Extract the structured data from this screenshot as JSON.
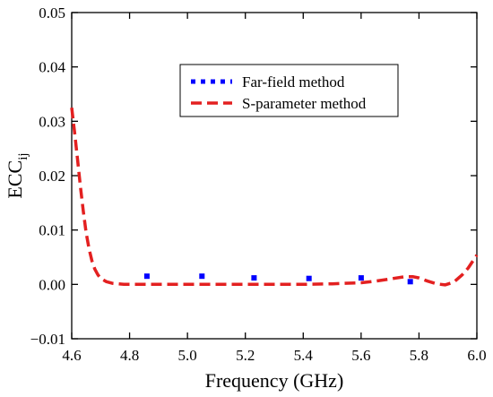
{
  "chart_data": {
    "type": "line",
    "xlabel": "Frequency (GHz)",
    "ylabel_main": "ECC",
    "ylabel_sub": "ij",
    "xlim": [
      4.6,
      6.0
    ],
    "ylim": [
      -0.01,
      0.05
    ],
    "xticks": [
      "4.6",
      "4.8",
      "5.0",
      "5.2",
      "5.4",
      "5.6",
      "5.8",
      "6.0"
    ],
    "yticks": [
      "−0.01",
      "0.00",
      "0.01",
      "0.02",
      "0.03",
      "0.04",
      "0.05"
    ],
    "grid": false,
    "legend_position": "top-right",
    "series": [
      {
        "name": "Far-field method",
        "style": "dotted",
        "color": "#0000ff",
        "x": [
          4.86,
          5.05,
          5.23,
          5.42,
          5.6,
          5.77
        ],
        "y": [
          0.0015,
          0.0015,
          0.0012,
          0.0011,
          0.0012,
          0.0005
        ]
      },
      {
        "name": "S-parameter method",
        "style": "dashed",
        "color": "#e32020",
        "x": [
          4.6,
          4.61,
          4.62,
          4.63,
          4.64,
          4.65,
          4.66,
          4.67,
          4.68,
          4.69,
          4.7,
          4.72,
          4.74,
          4.76,
          4.78,
          4.8,
          5.0,
          5.2,
          5.4,
          5.5,
          5.6,
          5.65,
          5.7,
          5.75,
          5.78,
          5.8,
          5.83,
          5.86,
          5.89,
          5.92,
          5.95,
          5.97,
          6.0
        ],
        "y": [
          0.0325,
          0.028,
          0.023,
          0.018,
          0.0135,
          0.0095,
          0.0065,
          0.0043,
          0.0028,
          0.0018,
          0.0011,
          0.0005,
          0.0002,
          0.0001,
          0.0,
          0.0,
          0.0,
          0.0,
          0.0,
          0.0001,
          0.0003,
          0.0006,
          0.001,
          0.0014,
          0.0014,
          0.0012,
          0.0006,
          0.0001,
          -0.0001,
          0.0004,
          0.0018,
          0.003,
          0.0054
        ]
      }
    ]
  }
}
